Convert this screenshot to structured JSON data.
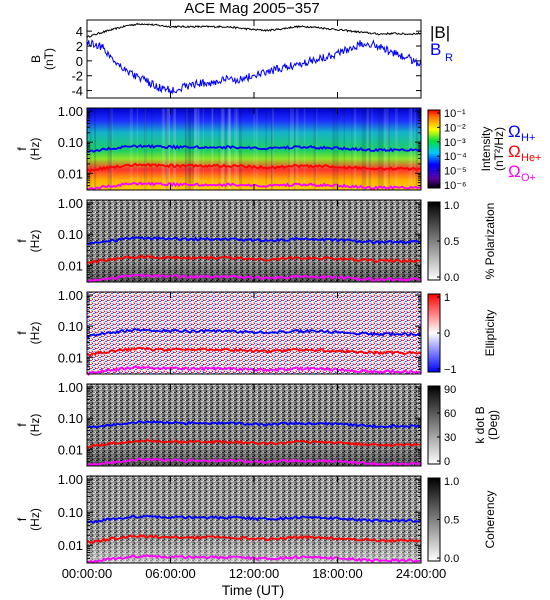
{
  "title": "ACE Mag 2005−357",
  "x_axis": {
    "label": "Time (UT)",
    "ticks": [
      "00:00:00",
      "06:00:00",
      "12:00:00",
      "18:00:00",
      "24:00:00"
    ],
    "range_hours": [
      0,
      24
    ]
  },
  "chart_data": [
    {
      "type": "line",
      "panel": "magnetic-field",
      "ylabel": "B (nT)",
      "ylim": [
        -5,
        5.5
      ],
      "yticks": [
        "4",
        "2",
        "0",
        "-2",
        "-4"
      ],
      "series": [
        {
          "name": "|B|",
          "color": "#000000",
          "x": [
            0,
            1,
            2,
            3,
            4,
            5,
            6,
            7,
            8,
            9,
            10,
            11,
            12,
            13,
            14,
            15,
            16,
            17,
            18,
            19,
            20,
            21,
            22,
            23,
            24
          ],
          "values": [
            3.2,
            3.8,
            4.3,
            4.8,
            5.0,
            4.8,
            4.6,
            4.6,
            4.6,
            4.6,
            4.6,
            4.4,
            4.2,
            4.1,
            4.3,
            4.6,
            4.6,
            4.4,
            4.2,
            4.0,
            3.8,
            3.6,
            3.7,
            3.6,
            3.7
          ]
        },
        {
          "name": "B",
          "subscript": "R",
          "color": "#0000FF",
          "x": [
            0,
            1,
            2,
            3,
            4,
            5,
            6,
            7,
            8,
            9,
            10,
            11,
            12,
            13,
            14,
            15,
            16,
            17,
            18,
            19,
            20,
            21,
            22,
            23,
            24
          ],
          "values": [
            2.5,
            2.0,
            0.0,
            -1.5,
            -2.5,
            -3.5,
            -4.0,
            -3.5,
            -3.0,
            -3.0,
            -2.5,
            -2.5,
            -2.0,
            -1.5,
            -1.0,
            -0.5,
            0.0,
            0.5,
            1.0,
            1.8,
            2.5,
            2.0,
            1.0,
            0.5,
            -0.5
          ]
        }
      ]
    },
    {
      "type": "heatmap",
      "panel": "intensity",
      "ylabel": "f (Hz)",
      "yscale": "log",
      "yticks": [
        "1.00",
        "0.10",
        "0.01"
      ],
      "colorbar": {
        "label": "Intensity (nT²/Hz)",
        "ticks": [
          "10⁻¹",
          "10⁻²",
          "10⁻³",
          "10⁻⁴",
          "10⁻⁵",
          "10⁻⁶"
        ],
        "scale": "log",
        "range": [
          1e-06,
          0.1
        ]
      },
      "gyrofrequency_legend": [
        {
          "symbol": "Ω",
          "subscript": "H+",
          "color": "#0000FF"
        },
        {
          "symbol": "Ω",
          "subscript": "He+",
          "color": "#FF0000"
        },
        {
          "symbol": "Ω",
          "subscript": "O+",
          "color": "#FF00FF"
        }
      ]
    },
    {
      "type": "heatmap",
      "panel": "polarization",
      "ylabel": "f (Hz)",
      "yscale": "log",
      "yticks": [
        "1.00",
        "0.10",
        "0.01"
      ],
      "colorbar": {
        "label": "% Polarization",
        "ticks": [
          "1.0",
          "0.5",
          "0.0"
        ],
        "range": [
          0,
          1
        ]
      }
    },
    {
      "type": "heatmap",
      "panel": "ellipticity",
      "ylabel": "f (Hz)",
      "yscale": "log",
      "yticks": [
        "1.00",
        "0.10",
        "0.01"
      ],
      "colorbar": {
        "label": "Ellipticity",
        "ticks": [
          "1",
          "0",
          "−1"
        ],
        "range": [
          -1,
          1
        ]
      }
    },
    {
      "type": "heatmap",
      "panel": "wave-normal-angle",
      "ylabel": "f (Hz)",
      "yscale": "log",
      "yticks": [
        "1.00",
        "0.10",
        "0.01"
      ],
      "colorbar": {
        "label": "k dot B (Deg)",
        "ticks": [
          "90",
          "60",
          "30",
          "0"
        ],
        "range": [
          0,
          90
        ]
      }
    },
    {
      "type": "heatmap",
      "panel": "coherency",
      "ylabel": "f (Hz)",
      "yscale": "log",
      "yticks": [
        "1.00",
        "0.10",
        "0.01"
      ],
      "colorbar": {
        "label": "Coherency",
        "ticks": [
          "1.0",
          "0.5",
          "0.0"
        ],
        "range": [
          0,
          1
        ]
      }
    }
  ],
  "gyrofrequency_traces": {
    "x_hours": [
      0,
      1,
      2,
      3,
      4,
      5,
      6,
      7,
      8,
      9,
      10,
      11,
      12,
      13,
      14,
      15,
      16,
      17,
      18,
      19,
      20,
      21,
      22,
      23,
      24
    ],
    "H+": [
      0.048,
      0.056,
      0.064,
      0.072,
      0.075,
      0.072,
      0.07,
      0.069,
      0.069,
      0.069,
      0.069,
      0.067,
      0.064,
      0.062,
      0.065,
      0.069,
      0.069,
      0.067,
      0.064,
      0.061,
      0.058,
      0.055,
      0.056,
      0.055,
      0.056
    ],
    "He+": [
      0.012,
      0.014,
      0.016,
      0.018,
      0.019,
      0.018,
      0.0175,
      0.0173,
      0.0173,
      0.0173,
      0.0173,
      0.0168,
      0.016,
      0.0155,
      0.0163,
      0.0173,
      0.0173,
      0.0168,
      0.016,
      0.0153,
      0.0145,
      0.0138,
      0.014,
      0.0138,
      0.014
    ],
    "O+": [
      0.003,
      0.0035,
      0.004,
      0.0045,
      0.0047,
      0.0045,
      0.0044,
      0.0043,
      0.0043,
      0.0043,
      0.0043,
      0.0042,
      0.004,
      0.0039,
      0.0041,
      0.0043,
      0.0043,
      0.0042,
      0.004,
      0.0038,
      0.0036,
      0.0034,
      0.0035,
      0.0034,
      0.0035
    ]
  }
}
